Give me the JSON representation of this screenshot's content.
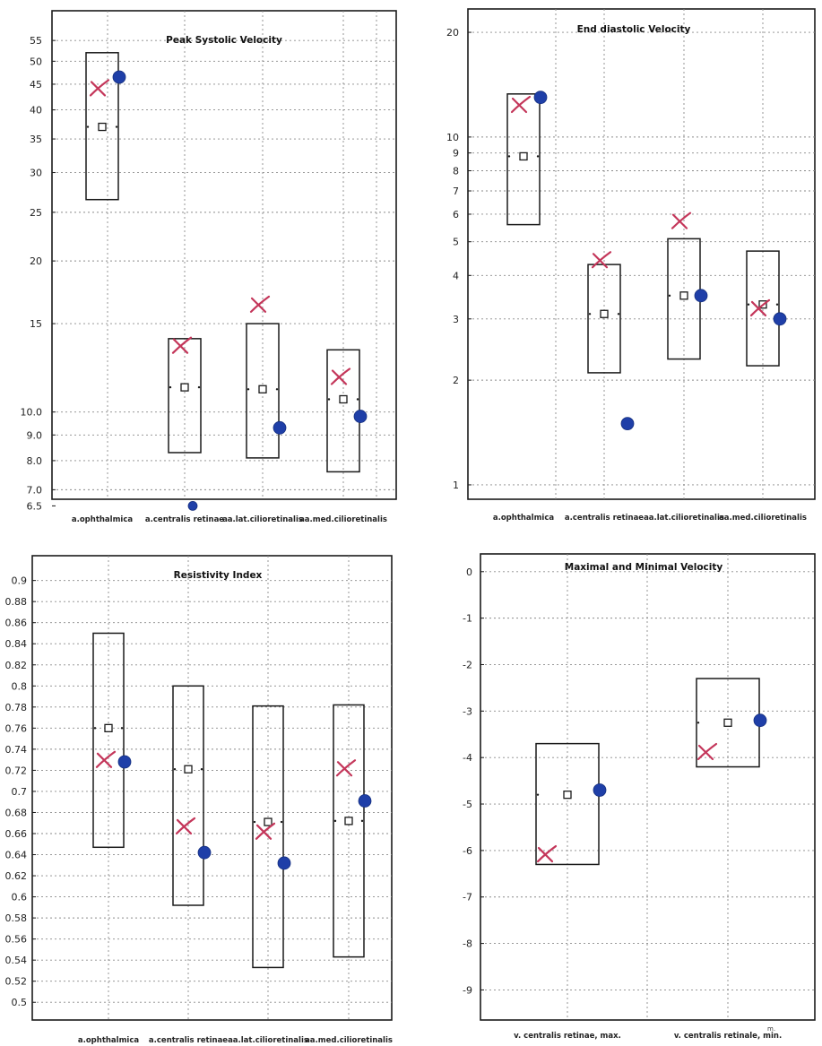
{
  "chart_data": [
    {
      "id": "psv",
      "type": "box",
      "title": "Peak Systolic Velocity",
      "yscale": "log",
      "ylim": [
        6.3,
        60
      ],
      "yticks": [
        55,
        50,
        45,
        40,
        35,
        30,
        25,
        20,
        15
      ],
      "yticks_fine": [
        "10.0",
        "9.0",
        "8.0",
        "7.0",
        "6.5"
      ],
      "grid": true,
      "categories": [
        "a.ophthalmica",
        "a.centralis retinae",
        "aa.lat.cilioretinalis",
        "aa.med.cilioretinalis"
      ],
      "boxes": [
        {
          "low": 26.5,
          "high": 52,
          "median": 37
        },
        {
          "low": 8.3,
          "high": 14,
          "median": 11.2
        },
        {
          "low": 8.1,
          "high": 15,
          "median": 11.1
        },
        {
          "low": 7.6,
          "high": 13.3,
          "median": 10.6
        }
      ],
      "crosses": [
        44,
        13.5,
        16.3,
        11.7
      ],
      "dots": [
        46.5,
        6.5,
        9.3,
        9.8
      ]
    },
    {
      "id": "edv",
      "type": "box",
      "title": "End diastolic Velocity",
      "yscale": "log",
      "ylim": [
        0.92,
        22
      ],
      "yticks": [
        "20",
        "10",
        "9",
        "8",
        "7",
        "6",
        "5",
        "4",
        "3",
        "2",
        "1"
      ],
      "grid": true,
      "categories": [
        "a.ophthalmica",
        "a.centralis retinae",
        "aa.lat.cilioretinalis",
        "aa.med.cilioretinalis"
      ],
      "boxes": [
        {
          "low": 5.6,
          "high": 13.3,
          "median": 8.8
        },
        {
          "low": 2.1,
          "high": 4.3,
          "median": 3.1
        },
        {
          "low": 2.3,
          "high": 5.1,
          "median": 3.5
        },
        {
          "low": 2.2,
          "high": 4.7,
          "median": 3.3
        }
      ],
      "crosses": [
        12.3,
        4.4,
        5.7,
        3.2
      ],
      "dots": [
        13.0,
        1.5,
        3.5,
        3.0
      ]
    },
    {
      "id": "ri",
      "type": "box",
      "title": "Resistivity Index",
      "yscale": "linear",
      "ylim": [
        0.49,
        0.915
      ],
      "yticks": [
        "0.9",
        "0.88",
        "0.86",
        "0.84",
        "0.82",
        "0.8",
        "0.78",
        "0.76",
        "0.74",
        "0.72",
        "0.7",
        "0.68",
        "0.66",
        "0.64",
        "0.62",
        "0.6",
        "0.58",
        "0.56",
        "0.54",
        "0.52",
        "0.5"
      ],
      "grid": true,
      "categories": [
        "a.ophthalmica",
        "a.centralis retinae",
        "aa.lat.cilioretinalis",
        "aa.med.cilioretinalis"
      ],
      "boxes": [
        {
          "low": 0.647,
          "high": 0.85,
          "median": 0.76
        },
        {
          "low": 0.592,
          "high": 0.8,
          "median": 0.721
        },
        {
          "low": 0.533,
          "high": 0.781,
          "median": 0.671
        },
        {
          "low": 0.543,
          "high": 0.782,
          "median": 0.672
        }
      ],
      "crosses": [
        0.729,
        0.666,
        0.661,
        0.721
      ],
      "dots": [
        0.728,
        0.642,
        0.632,
        0.691
      ]
    },
    {
      "id": "mmv",
      "type": "box",
      "title": "Maximal and Minimal Velocity",
      "yscale": "linear",
      "ylim": [
        -9.3,
        0.15
      ],
      "yticks": [
        "0",
        "-1",
        "-2",
        "-3",
        "-4",
        "-5",
        "-6",
        "-7",
        "-8",
        "-9"
      ],
      "grid": true,
      "categories": [
        "v. centralis retinae, max.",
        "v. centralis retinale, min."
      ],
      "corner_note": "m.",
      "boxes": [
        {
          "low": -6.3,
          "high": -3.7,
          "median": -4.8
        },
        {
          "low": -4.2,
          "high": -2.3,
          "median": -3.25
        }
      ],
      "crosses": [
        -6.1,
        -3.9
      ],
      "dots": [
        -4.7,
        -3.2
      ]
    }
  ]
}
